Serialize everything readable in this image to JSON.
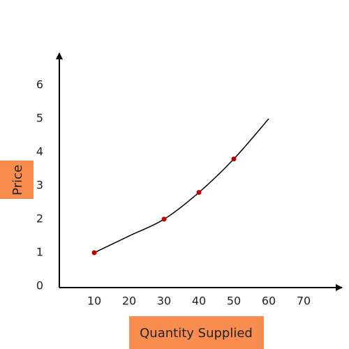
{
  "chart_data": {
    "type": "line",
    "xlabel": "Quantity Supplied",
    "ylabel": "Price",
    "xlim": [
      0,
      80
    ],
    "ylim": [
      0,
      6.9
    ],
    "xticks": [
      10,
      20,
      30,
      40,
      50,
      60,
      70
    ],
    "yticks": [
      0,
      1,
      2,
      3,
      4,
      5,
      6
    ],
    "label_box_color": "#f98d4f",
    "series": [
      {
        "color": "#000000",
        "style": "line",
        "x": [
          10,
          20,
          30,
          40,
          50,
          60
        ],
        "values": [
          1,
          1.5,
          2,
          2.8,
          3.8,
          5
        ]
      },
      {
        "color": "#c00000",
        "style": "points",
        "x": [
          10,
          30,
          40,
          50
        ],
        "values": [
          1,
          2,
          2.8,
          3.8
        ]
      }
    ]
  }
}
